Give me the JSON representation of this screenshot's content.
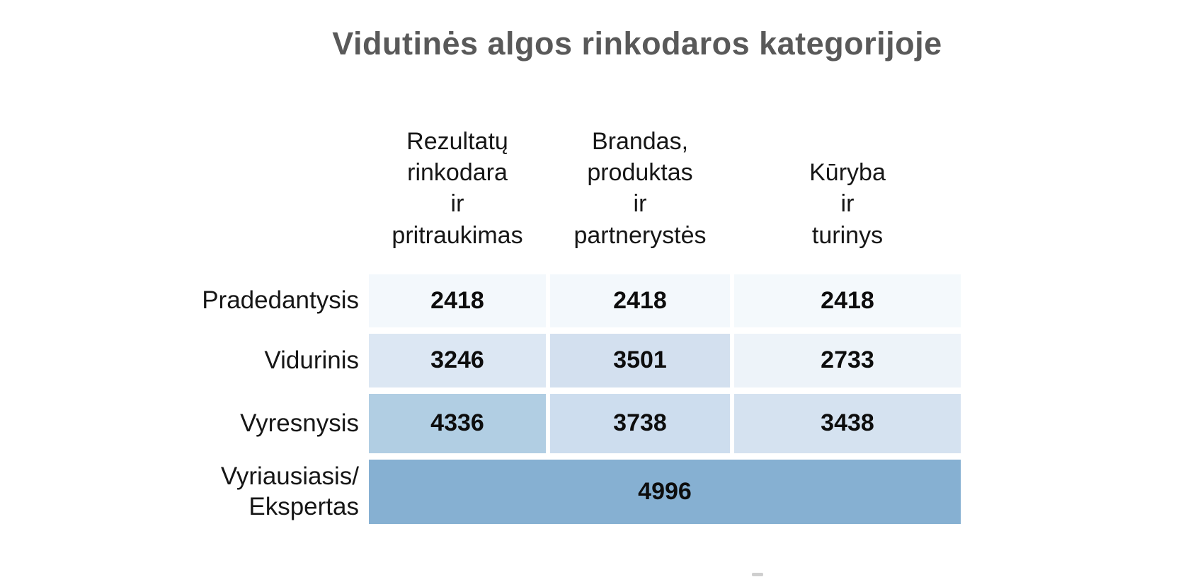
{
  "title": "Vidutinės algos rinkodaros kategorijoje",
  "chart_data": {
    "type": "heatmap",
    "title": "Vidutinės algos rinkodaros kategorijoje",
    "columns": [
      "Rezultatų rinkodara ir pritraukimas",
      "Brandas, produktas ir partnerystės",
      "Kūryba ir turinys"
    ],
    "rows": [
      "Pradedantysis",
      "Vidurinis",
      "Vyresnysis",
      "Vyriausiasis/Ekspertas"
    ],
    "values": [
      [
        2418,
        2418,
        2418
      ],
      [
        3246,
        3501,
        2733
      ],
      [
        4336,
        3738,
        3438
      ],
      [
        4996,
        4996,
        4996
      ]
    ],
    "layout_note": "bottom row is one merged cell (4996) spanning all three columns",
    "color_scale": {
      "min_value": 2418,
      "min_color": "#f3f8fc",
      "max_value": 4996,
      "max_color": "#86b0d2"
    },
    "legend": "none",
    "grid": "off"
  },
  "table": {
    "col_headers": [
      "Rezultatų\nrinkodara\nir\npritraukimas",
      "Brandas,\nproduktas\nir\npartnerystės",
      "Kūryba\nir\nturinys"
    ],
    "rows": [
      {
        "label": "Pradedantysis",
        "cells": [
          {
            "value": "2418",
            "bg": "#f3f8fc"
          },
          {
            "value": "2418",
            "bg": "#f3f8fc"
          },
          {
            "value": "2418",
            "bg": "#f4f9fc"
          }
        ]
      },
      {
        "label": "Vidurinis",
        "cells": [
          {
            "value": "3246",
            "bg": "#dce7f3"
          },
          {
            "value": "3501",
            "bg": "#d3e0ef"
          },
          {
            "value": "2733",
            "bg": "#edf3f9"
          }
        ]
      },
      {
        "label": "Vyresnysis",
        "cells": [
          {
            "value": "4336",
            "bg": "#b1cee3"
          },
          {
            "value": "3738",
            "bg": "#cdddee"
          },
          {
            "value": "3438",
            "bg": "#d5e2f0"
          }
        ]
      },
      {
        "label": "Vyriausiasis/\nEkspertas",
        "cells": [
          {
            "value": "4996",
            "bg": "#86b0d2"
          }
        ]
      }
    ]
  }
}
